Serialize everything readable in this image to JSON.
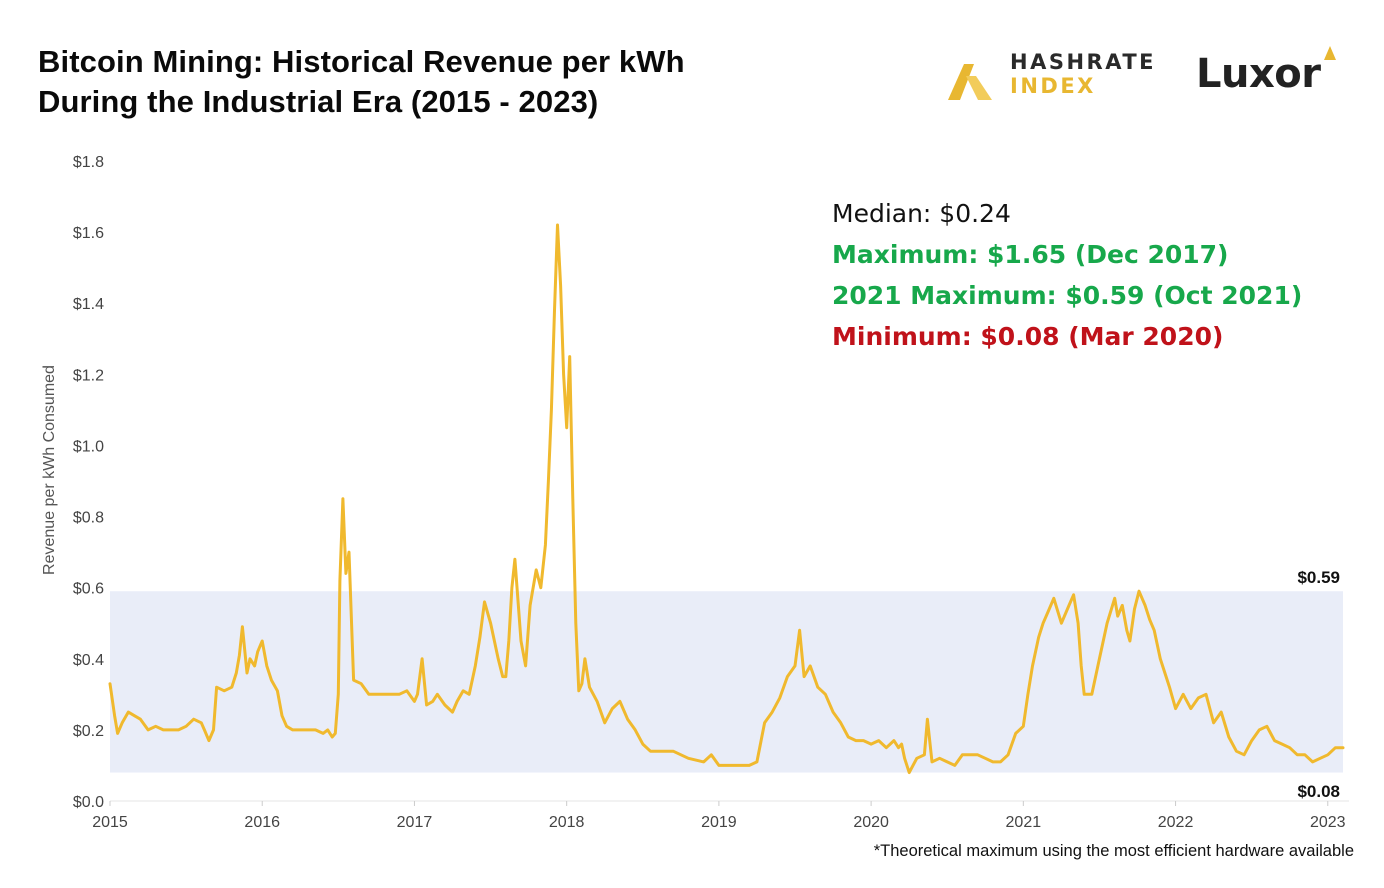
{
  "header": {
    "title_line1": "Bitcoin Mining: Historical Revenue per kWh",
    "title_line2": "During the Industrial Era (2015 - 2023)"
  },
  "logos": {
    "hashrate_line1": "HASHRATE",
    "hashrate_line2": "INDEX",
    "luxor": "Luxor",
    "brand_gold": "#e8b731",
    "brand_dark": "#222222"
  },
  "footnote": "*Theoretical maximum using the most efficient hardware available",
  "stats": {
    "median": "Median: $0.24",
    "maximum": "Maximum: $1.65 (Dec 2017)",
    "max_2021": "2021 Maximum: $0.59 (Oct 2021)",
    "minimum": "Minimum: $0.08 (Mar 2020)",
    "colors": {
      "median": "#111111",
      "maximum": "#17a84b",
      "max_2021": "#17a84b",
      "minimum": "#c0121a"
    }
  },
  "chart_data": {
    "type": "line",
    "title": "",
    "xlabel": "",
    "ylabel": "Revenue per kWh Consumed",
    "xlim": [
      2015.0,
      2023.1
    ],
    "ylim": [
      0,
      1.8
    ],
    "x_ticks": [
      2015,
      2016,
      2017,
      2018,
      2019,
      2020,
      2021,
      2022,
      2023
    ],
    "x_tick_labels": [
      "2015",
      "2016",
      "2017",
      "2018",
      "2019",
      "2020",
      "2021",
      "2022",
      "2023"
    ],
    "y_ticks": [
      0,
      0.2,
      0.4,
      0.6,
      0.8,
      1.0,
      1.2,
      1.4,
      1.6,
      1.8
    ],
    "y_tick_labels": [
      "$0.0",
      "$0.2",
      "$0.4",
      "$0.6",
      "$0.8",
      "$1.0",
      "$1.2",
      "$1.4",
      "$1.6",
      "$1.8"
    ],
    "grid": false,
    "line_color": "#f0b92e",
    "band": {
      "low": 0.08,
      "high": 0.59,
      "color": "#e9edf8",
      "low_label": "$0.08",
      "high_label": "$0.59"
    },
    "series": [
      {
        "x": [
          2015.0,
          2015.03,
          2015.05,
          2015.08,
          2015.12,
          2015.16,
          2015.2,
          2015.25,
          2015.3,
          2015.35,
          2015.4,
          2015.45,
          2015.5,
          2015.55,
          2015.6,
          2015.62,
          2015.65,
          2015.68,
          2015.7,
          2015.75,
          2015.8,
          2015.83,
          2015.85,
          2015.87,
          2015.9,
          2015.92,
          2015.95,
          2015.97,
          2016.0,
          2016.03,
          2016.06,
          2016.1,
          2016.13,
          2016.16,
          2016.2,
          2016.25,
          2016.3,
          2016.35,
          2016.4,
          2016.43,
          2016.46,
          2016.48,
          2016.5,
          2016.51,
          2016.53,
          2016.55,
          2016.57,
          2016.6,
          2016.65,
          2016.7,
          2016.8,
          2016.9,
          2016.95,
          2017.0,
          2017.02,
          2017.05,
          2017.08,
          2017.12,
          2017.15,
          2017.2,
          2017.25,
          2017.28,
          2017.32,
          2017.36,
          2017.4,
          2017.43,
          2017.46,
          2017.5,
          2017.55,
          2017.58,
          2017.6,
          2017.62,
          2017.64,
          2017.66,
          2017.7,
          2017.73,
          2017.76,
          2017.8,
          2017.83,
          2017.86,
          2017.88,
          2017.9,
          2017.92,
          2017.94,
          2017.96,
          2017.98,
          2018.0,
          2018.02,
          2018.04,
          2018.06,
          2018.08,
          2018.1,
          2018.12,
          2018.15,
          2018.2,
          2018.25,
          2018.3,
          2018.35,
          2018.4,
          2018.45,
          2018.5,
          2018.55,
          2018.6,
          2018.7,
          2018.8,
          2018.9,
          2018.95,
          2019.0,
          2019.05,
          2019.1,
          2019.15,
          2019.2,
          2019.25,
          2019.3,
          2019.35,
          2019.4,
          2019.45,
          2019.5,
          2019.53,
          2019.56,
          2019.6,
          2019.65,
          2019.7,
          2019.75,
          2019.8,
          2019.85,
          2019.9,
          2019.95,
          2020.0,
          2020.05,
          2020.1,
          2020.15,
          2020.18,
          2020.2,
          2020.22,
          2020.25,
          2020.3,
          2020.35,
          2020.37,
          2020.4,
          2020.45,
          2020.5,
          2020.55,
          2020.6,
          2020.65,
          2020.7,
          2020.75,
          2020.8,
          2020.85,
          2020.9,
          2020.95,
          2021.0,
          2021.03,
          2021.06,
          2021.1,
          2021.13,
          2021.16,
          2021.2,
          2021.25,
          2021.3,
          2021.33,
          2021.36,
          2021.38,
          2021.4,
          2021.45,
          2021.5,
          2021.55,
          2021.6,
          2021.62,
          2021.65,
          2021.68,
          2021.7,
          2021.73,
          2021.76,
          2021.8,
          2021.83,
          2021.86,
          2021.9,
          2021.93,
          2021.96,
          2022.0,
          2022.05,
          2022.1,
          2022.15,
          2022.2,
          2022.25,
          2022.3,
          2022.35,
          2022.4,
          2022.45,
          2022.5,
          2022.55,
          2022.6,
          2022.65,
          2022.7,
          2022.75,
          2022.8,
          2022.85,
          2022.9,
          2022.95,
          2023.0,
          2023.05,
          2023.1
        ],
        "y": [
          0.33,
          0.24,
          0.19,
          0.22,
          0.25,
          0.24,
          0.23,
          0.2,
          0.21,
          0.2,
          0.2,
          0.2,
          0.21,
          0.23,
          0.22,
          0.2,
          0.17,
          0.2,
          0.32,
          0.31,
          0.32,
          0.36,
          0.41,
          0.49,
          0.36,
          0.4,
          0.38,
          0.42,
          0.45,
          0.38,
          0.34,
          0.31,
          0.24,
          0.21,
          0.2,
          0.2,
          0.2,
          0.2,
          0.19,
          0.2,
          0.18,
          0.19,
          0.3,
          0.62,
          0.85,
          0.64,
          0.7,
          0.34,
          0.33,
          0.3,
          0.3,
          0.3,
          0.31,
          0.28,
          0.3,
          0.4,
          0.27,
          0.28,
          0.3,
          0.27,
          0.25,
          0.28,
          0.31,
          0.3,
          0.38,
          0.46,
          0.56,
          0.5,
          0.4,
          0.35,
          0.35,
          0.45,
          0.6,
          0.68,
          0.45,
          0.38,
          0.55,
          0.65,
          0.6,
          0.72,
          0.9,
          1.1,
          1.38,
          1.62,
          1.45,
          1.2,
          1.05,
          1.25,
          0.85,
          0.5,
          0.31,
          0.33,
          0.4,
          0.32,
          0.28,
          0.22,
          0.26,
          0.28,
          0.23,
          0.2,
          0.16,
          0.14,
          0.14,
          0.14,
          0.12,
          0.11,
          0.13,
          0.1,
          0.1,
          0.1,
          0.1,
          0.1,
          0.11,
          0.22,
          0.25,
          0.29,
          0.35,
          0.38,
          0.48,
          0.35,
          0.38,
          0.32,
          0.3,
          0.25,
          0.22,
          0.18,
          0.17,
          0.17,
          0.16,
          0.17,
          0.15,
          0.17,
          0.15,
          0.16,
          0.12,
          0.08,
          0.12,
          0.13,
          0.23,
          0.11,
          0.12,
          0.11,
          0.1,
          0.13,
          0.13,
          0.13,
          0.12,
          0.11,
          0.11,
          0.13,
          0.19,
          0.21,
          0.3,
          0.38,
          0.46,
          0.5,
          0.53,
          0.57,
          0.5,
          0.55,
          0.58,
          0.5,
          0.38,
          0.3,
          0.3,
          0.4,
          0.5,
          0.57,
          0.52,
          0.55,
          0.48,
          0.45,
          0.54,
          0.59,
          0.55,
          0.51,
          0.48,
          0.4,
          0.36,
          0.32,
          0.26,
          0.3,
          0.26,
          0.29,
          0.3,
          0.22,
          0.25,
          0.18,
          0.14,
          0.13,
          0.17,
          0.2,
          0.21,
          0.17,
          0.16,
          0.15,
          0.13,
          0.13,
          0.11,
          0.12,
          0.13,
          0.15,
          0.15
        ]
      }
    ]
  }
}
